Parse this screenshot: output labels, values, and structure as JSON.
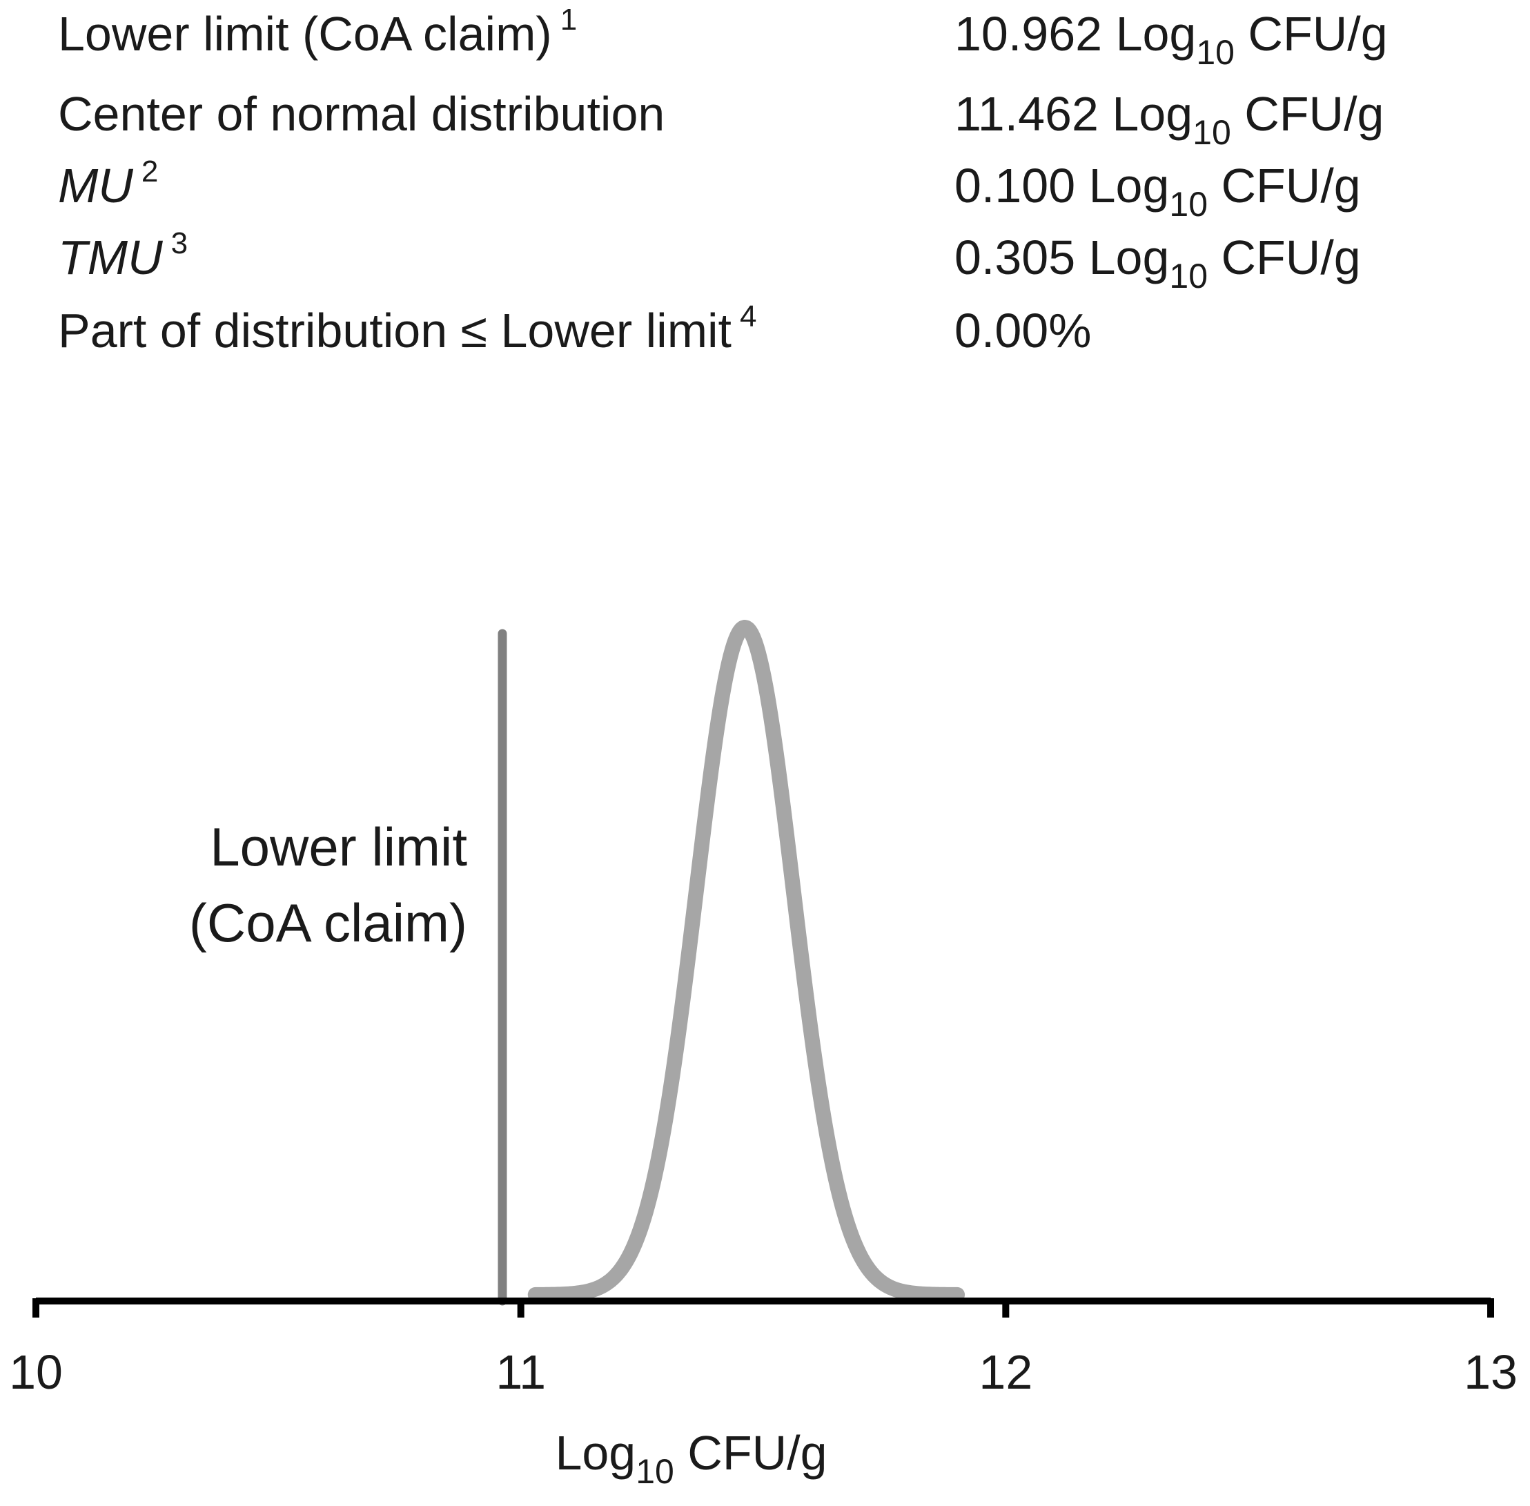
{
  "stats": [
    {
      "label": "Lower limit (CoA claim)",
      "note": "1",
      "value": "10.962",
      "unit_base": "Log",
      "unit_sub": "10",
      "unit_tail": " CFU/g",
      "italic": false
    },
    {
      "label": "Center of normal distribution",
      "note": "",
      "value": "11.462",
      "unit_base": "Log",
      "unit_sub": "10",
      "unit_tail": " CFU/g",
      "italic": false
    },
    {
      "label": "MU",
      "note": "2",
      "value": "0.100",
      "unit_base": "Log",
      "unit_sub": "10",
      "unit_tail": " CFU/g",
      "italic": true
    },
    {
      "label": "TMU",
      "note": "3",
      "value": "0.305",
      "unit_base": "Log",
      "unit_sub": "10",
      "unit_tail": " CFU/g",
      "italic": true
    },
    {
      "label": "Part of distribution ≤ Lower limit",
      "note": "4",
      "value": "0.00%",
      "unit_base": "",
      "unit_sub": "",
      "unit_tail": "",
      "italic": false
    }
  ],
  "chart_data": {
    "type": "line",
    "xlabel": {
      "base": "Log",
      "sub": "10",
      "tail": " CFU/g"
    },
    "ylabel": "",
    "title": "",
    "xlim": [
      10,
      13
    ],
    "x_ticks": [
      10,
      11,
      12,
      13
    ],
    "x_tick_labels": [
      "10",
      "11",
      "12",
      "13"
    ],
    "grid": false,
    "series": [
      {
        "kind": "normal-curve",
        "mean": 11.462,
        "sd": 0.1,
        "x_range": [
          11.03,
          11.9
        ],
        "color": "#a6a6a6"
      }
    ],
    "reference_lines": [
      {
        "x": 10.962,
        "label_lines": [
          "Lower limit",
          "(CoA claim)"
        ],
        "color": "#808080"
      }
    ],
    "axis_color": "#000000"
  }
}
